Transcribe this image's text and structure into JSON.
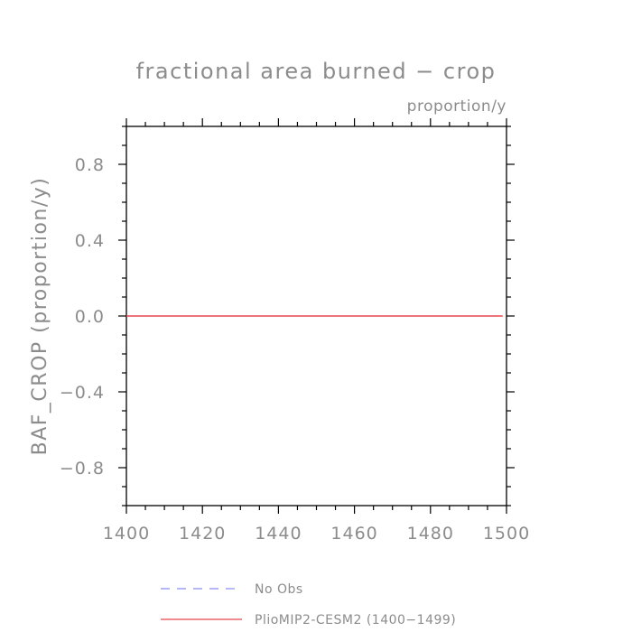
{
  "chart_data": {
    "type": "line",
    "title": "fractional area burned − crop",
    "subtitle": "proportion/y",
    "ylabel": "BAF_CROP  (proportion/y)",
    "xlabel": "",
    "xlim": [
      1400,
      1500
    ],
    "ylim": [
      -1.0,
      1.0
    ],
    "x_ticks": [
      1400,
      1420,
      1440,
      1460,
      1480,
      1500
    ],
    "y_ticks": [
      0.8,
      0.4,
      0.0,
      -0.4,
      -0.8
    ],
    "x_tick_labels": [
      "1400",
      "1420",
      "1440",
      "1460",
      "1480",
      "1500"
    ],
    "y_tick_labels": [
      "0.8",
      "0.4",
      "0.0",
      "−0.4",
      "−0.8"
    ],
    "grid": false,
    "legend_position": "bottom",
    "series": [
      {
        "name": "No Obs",
        "color": "#8a8cf0",
        "dash": "dashed",
        "x": [],
        "y": []
      },
      {
        "name": "PlioMIP2-CESM2 (1400−1499)",
        "color": "#e8474e",
        "dash": "solid",
        "x": [
          1400,
          1499
        ],
        "y": [
          0.0,
          0.0
        ]
      }
    ]
  }
}
